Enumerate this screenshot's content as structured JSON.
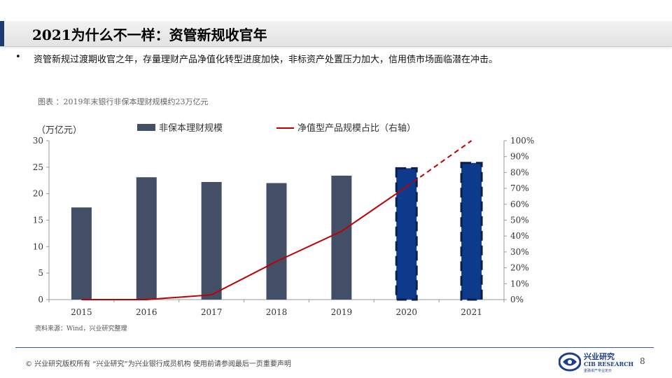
{
  "header": {
    "title": "2021为什么不一样：资管新规收官年"
  },
  "bullet": {
    "dot": "•",
    "text": "资管新规过渡期收官之年，存量理财产品净值化转型进度加快，非标资产处置压力加大，信用债市场面临潜在冲击。"
  },
  "caption": "图表 ：2019年末银行非保本理财规模约23万亿元",
  "source": "资料来源：Wind，兴业研究整理",
  "footer": {
    "text": "©  兴业研究版权所有   “兴业研究”为兴业银行成员机构   使用前请参阅最后一页重要声明",
    "logo_cn": "兴业研究",
    "logo_en": "CIB RESEARCH",
    "logo_sub": "金融资产专业定价",
    "page_number": "8"
  },
  "colors": {
    "bar": "#424f66",
    "bar_forecast": "#0d3a8a",
    "line": "#c00000",
    "title_accent": "#1f3a6e"
  },
  "chart_data": {
    "type": "bar",
    "left_axis_unit": "（万亿元）",
    "categories": [
      "2015",
      "2016",
      "2017",
      "2018",
      "2019",
      "2020",
      "2021"
    ],
    "ylim": [
      0,
      30
    ],
    "yticks": [
      "0",
      "5",
      "10",
      "15",
      "20",
      "25",
      "30"
    ],
    "y2lim": [
      0,
      1
    ],
    "y2ticks": [
      "0%",
      "10%",
      "20%",
      "30%",
      "40%",
      "50%",
      "60%",
      "70%",
      "80%",
      "90%",
      "100%"
    ],
    "grid": false,
    "legend_position": "top",
    "series": [
      {
        "name": "非保本理财规模",
        "type": "bar",
        "axis": "left",
        "values": [
          17.4,
          23.1,
          22.2,
          22.0,
          23.4,
          24.8,
          25.8
        ],
        "forecast_from_index": 5
      },
      {
        "name": "净值型产品规模占比（右轴）",
        "type": "line",
        "axis": "right",
        "values": [
          0.0,
          0.0,
          0.03,
          0.24,
          0.43,
          0.71,
          1.0
        ],
        "dashed_from_index": 5
      }
    ]
  }
}
